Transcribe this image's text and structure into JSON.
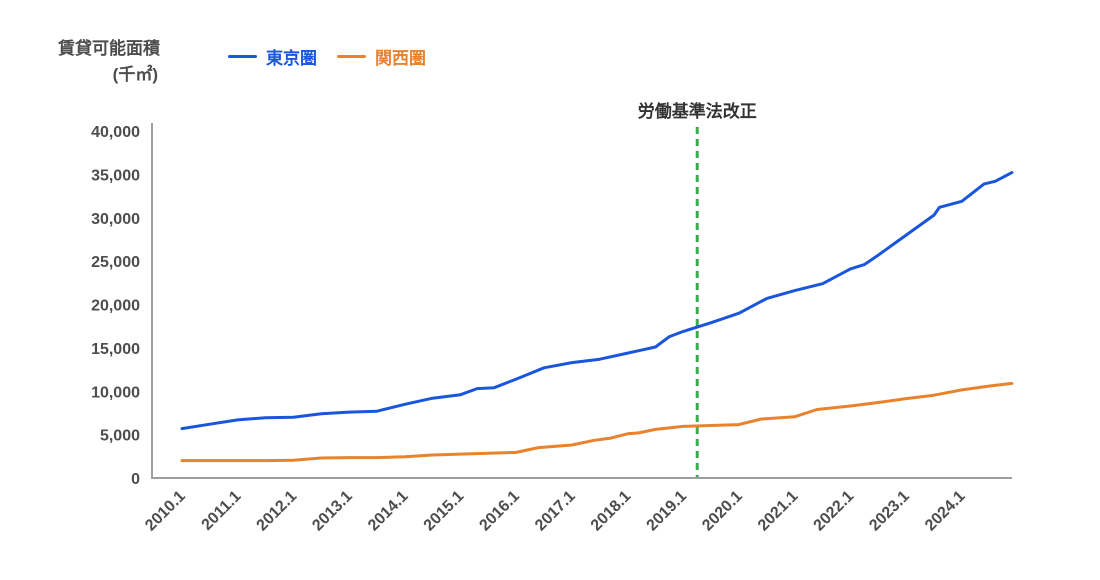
{
  "chart_data": {
    "type": "line",
    "title": "賃貸可能面積",
    "unit_label": "(千㎡)",
    "x_base_year": 2010,
    "x_tick_labels": [
      "2010.1",
      "2011.1",
      "2012.1",
      "2013.1",
      "2014.1",
      "2015.1",
      "2016.1",
      "2017.1",
      "2018.1",
      "2019.1",
      "2020.1",
      "2021.1",
      "2022.1",
      "2023.1",
      "2024.1"
    ],
    "y_ticks": [
      0,
      5000,
      10000,
      15000,
      20000,
      25000,
      30000,
      35000,
      40000
    ],
    "y_tick_labels": [
      "0",
      "5,000",
      "10,000",
      "15,000",
      "20,000",
      "25,000",
      "30,000",
      "35,000",
      "40,000"
    ],
    "ylim": [
      0,
      40000
    ],
    "grid": false,
    "legend_position": "top",
    "axis_color": "#9e9e9e",
    "tick_text_color": "#4d4d4d",
    "annotation": {
      "text": "労働基準法改正",
      "x": 2019.25,
      "style": "dashed-vertical",
      "line_color": "#3cab50",
      "text_color": "#333333"
    },
    "series": [
      {
        "name": "東京圏",
        "color": "#1a56db",
        "points": [
          [
            2010.0,
            5700
          ],
          [
            2010.5,
            6200
          ],
          [
            2011.0,
            6700
          ],
          [
            2011.5,
            6950
          ],
          [
            2012.0,
            7000
          ],
          [
            2012.5,
            7400
          ],
          [
            2013.0,
            7600
          ],
          [
            2013.5,
            7700
          ],
          [
            2014.0,
            8500
          ],
          [
            2014.5,
            9200
          ],
          [
            2015.0,
            9600
          ],
          [
            2015.3,
            10300
          ],
          [
            2015.6,
            10400
          ],
          [
            2016.0,
            11400
          ],
          [
            2016.5,
            12700
          ],
          [
            2017.0,
            13300
          ],
          [
            2017.5,
            13700
          ],
          [
            2018.0,
            14400
          ],
          [
            2018.5,
            15100
          ],
          [
            2018.75,
            16300
          ],
          [
            2019.0,
            16900
          ],
          [
            2019.5,
            17900
          ],
          [
            2020.0,
            19000
          ],
          [
            2020.5,
            20700
          ],
          [
            2021.0,
            21600
          ],
          [
            2021.5,
            22400
          ],
          [
            2022.0,
            24100
          ],
          [
            2022.25,
            24600
          ],
          [
            2022.5,
            25700
          ],
          [
            2023.0,
            28000
          ],
          [
            2023.5,
            30300
          ],
          [
            2023.6,
            31200
          ],
          [
            2024.0,
            31900
          ],
          [
            2024.4,
            33900
          ],
          [
            2024.6,
            34200
          ],
          [
            2024.9,
            35200
          ]
        ]
      },
      {
        "name": "関西圏",
        "color": "#e8832c",
        "points": [
          [
            2010.0,
            2000
          ],
          [
            2010.5,
            2000
          ],
          [
            2011.0,
            2000
          ],
          [
            2011.5,
            2000
          ],
          [
            2012.0,
            2050
          ],
          [
            2012.5,
            2300
          ],
          [
            2013.0,
            2350
          ],
          [
            2013.5,
            2350
          ],
          [
            2014.0,
            2450
          ],
          [
            2014.5,
            2650
          ],
          [
            2015.0,
            2750
          ],
          [
            2015.5,
            2850
          ],
          [
            2016.0,
            2950
          ],
          [
            2016.4,
            3500
          ],
          [
            2017.0,
            3800
          ],
          [
            2017.4,
            4350
          ],
          [
            2017.7,
            4600
          ],
          [
            2018.0,
            5100
          ],
          [
            2018.2,
            5200
          ],
          [
            2018.5,
            5600
          ],
          [
            2019.0,
            5950
          ],
          [
            2019.5,
            6050
          ],
          [
            2020.0,
            6150
          ],
          [
            2020.4,
            6800
          ],
          [
            2021.0,
            7050
          ],
          [
            2021.4,
            7900
          ],
          [
            2022.0,
            8300
          ],
          [
            2022.5,
            8700
          ],
          [
            2023.0,
            9150
          ],
          [
            2023.5,
            9550
          ],
          [
            2024.0,
            10150
          ],
          [
            2024.5,
            10600
          ],
          [
            2024.9,
            10900
          ]
        ]
      }
    ]
  }
}
